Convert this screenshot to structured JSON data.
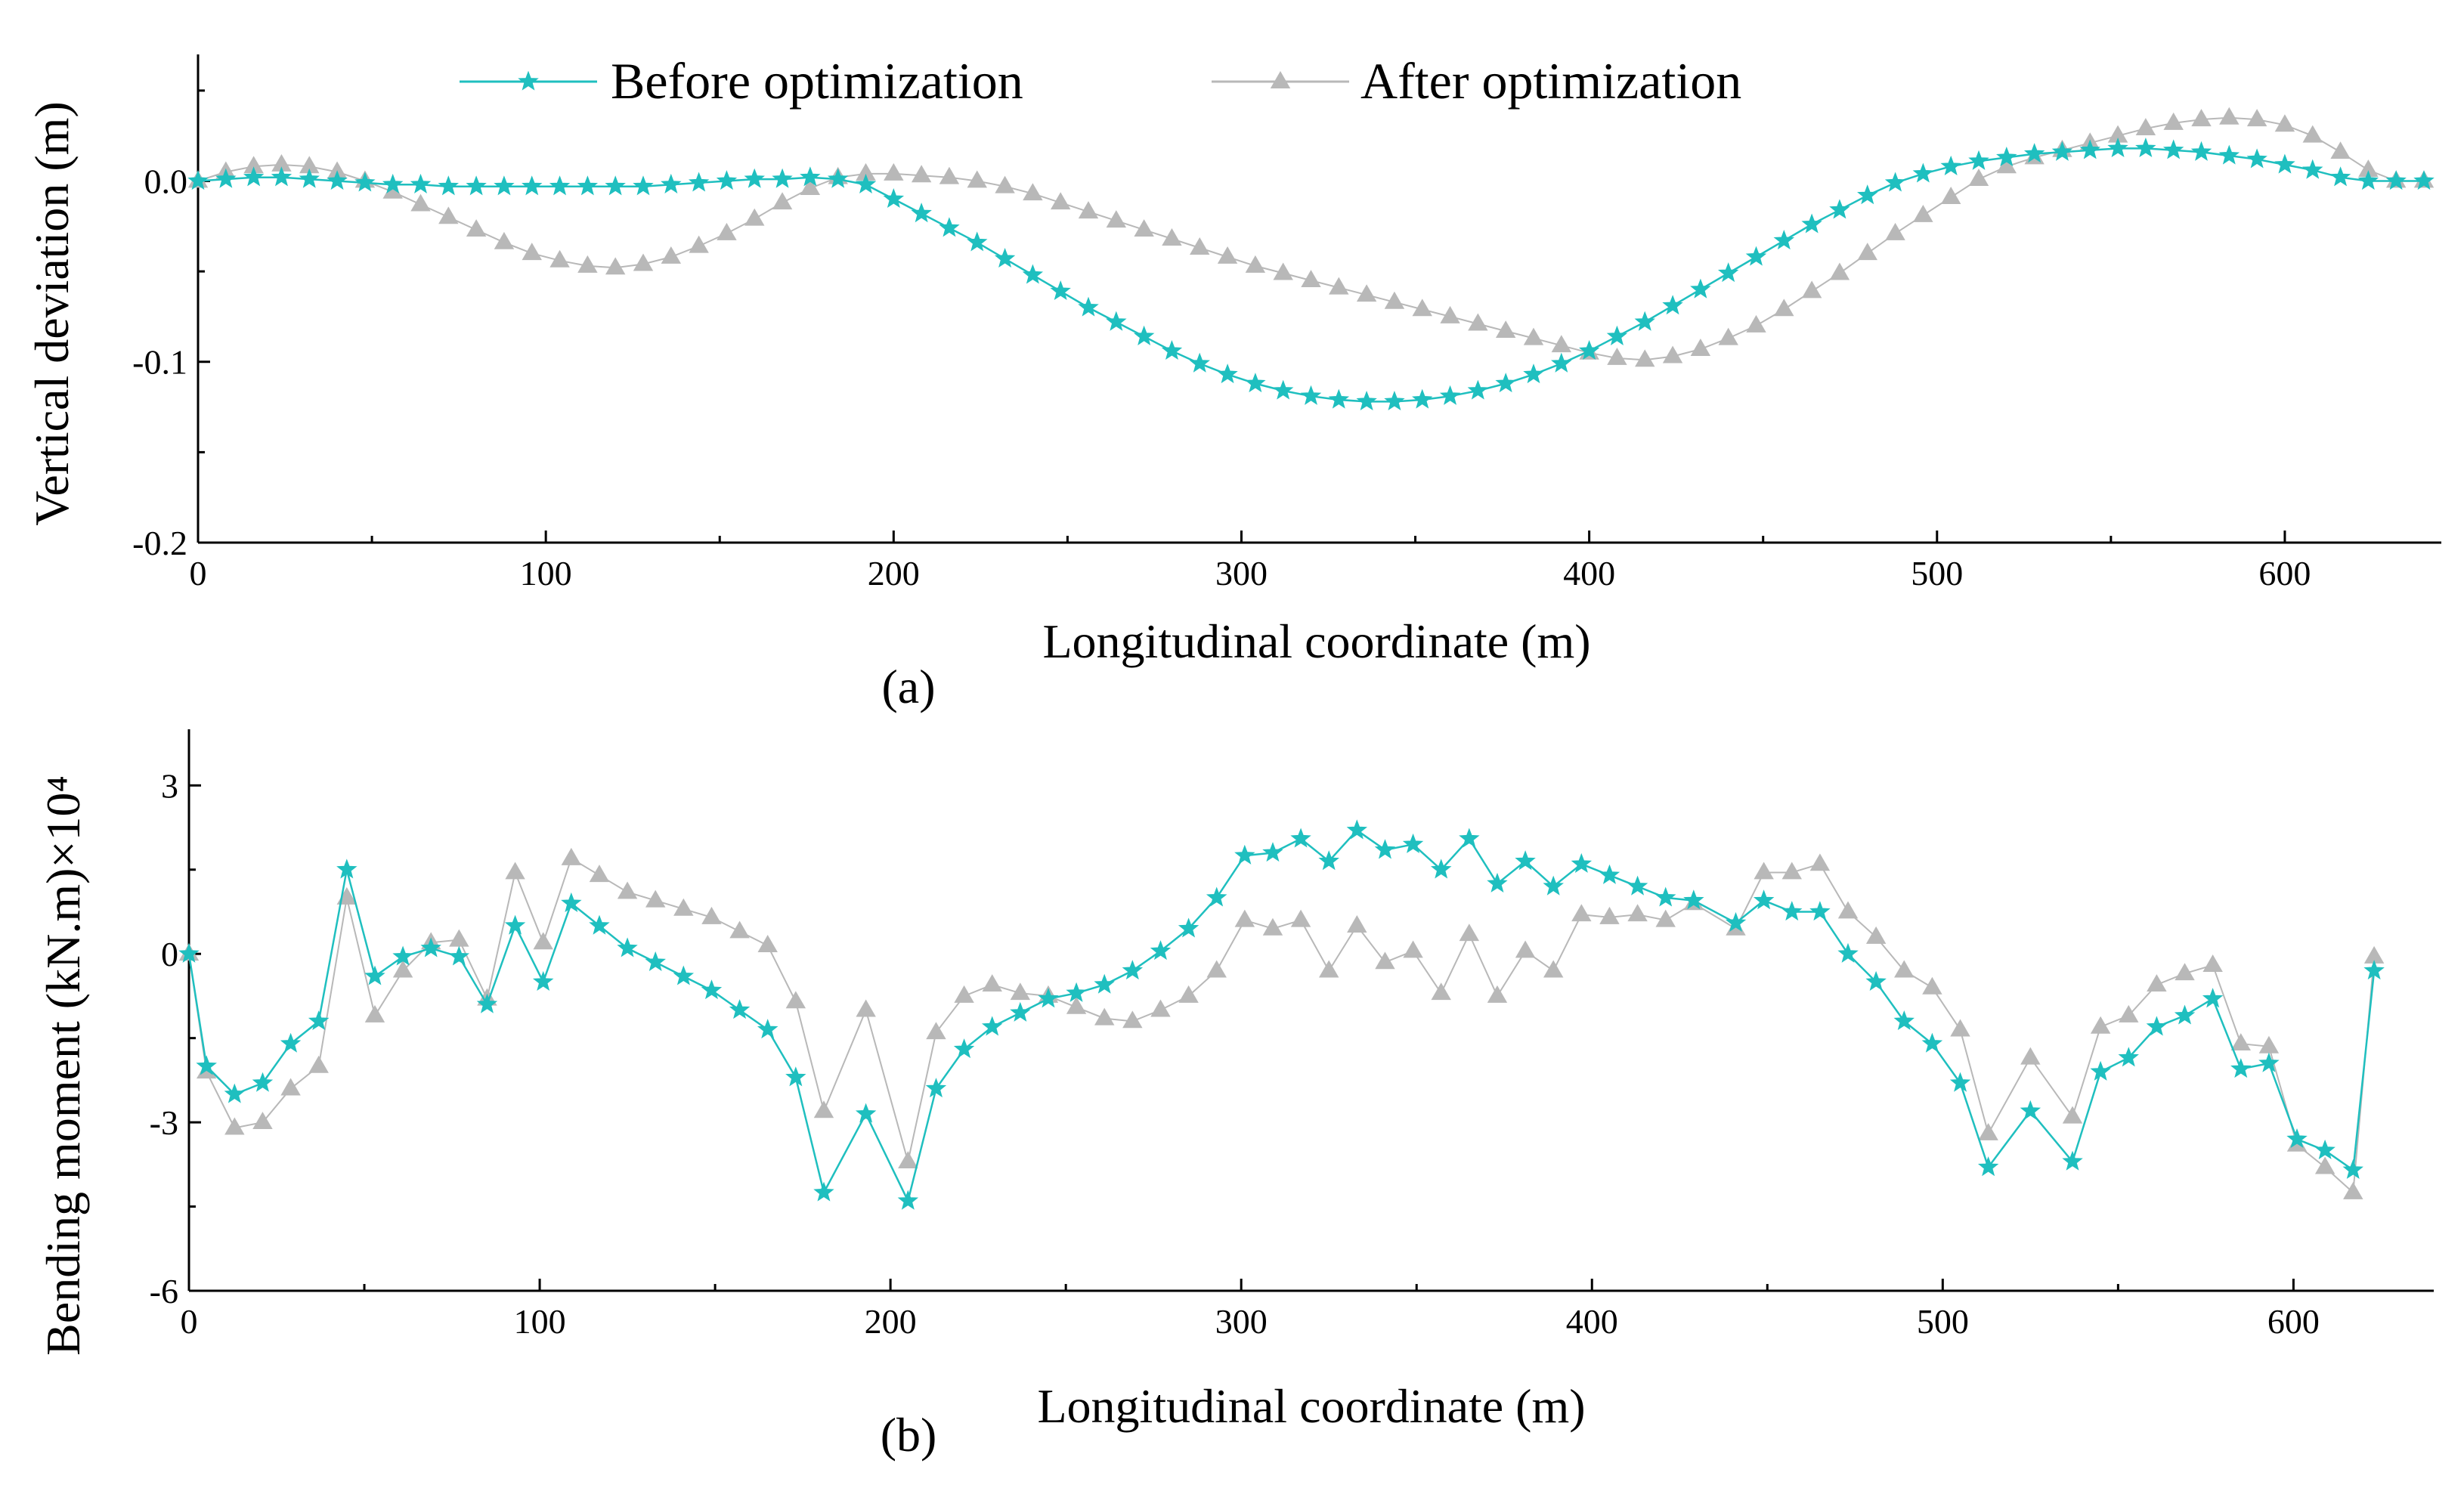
{
  "chart_data": [
    {
      "type": "line",
      "panel_label": "(a)",
      "xlabel": "Longitudinal coordinate (m)",
      "ylabel": "Vertical deviation (m)",
      "xlim": [
        0,
        645
      ],
      "ylim": [
        -0.2,
        0.07
      ],
      "xticks": [
        0,
        100,
        200,
        300,
        400,
        500,
        600
      ],
      "yticks": [
        0.0,
        -0.1,
        -0.2
      ],
      "ytick_labels": [
        "0.0",
        "-0.1",
        "-0.2"
      ],
      "legend_position": "top",
      "series": [
        {
          "name": "Before optimization",
          "color": "#1fbfbf",
          "marker": "star",
          "x": [
            0,
            8,
            16,
            24,
            32,
            40,
            48,
            56,
            64,
            72,
            80,
            88,
            96,
            104,
            112,
            120,
            128,
            136,
            144,
            152,
            160,
            168,
            176,
            184,
            192,
            200,
            208,
            216,
            224,
            232,
            240,
            248,
            256,
            264,
            272,
            280,
            288,
            296,
            304,
            312,
            320,
            328,
            336,
            344,
            352,
            360,
            368,
            376,
            384,
            392,
            400,
            408,
            416,
            424,
            432,
            440,
            448,
            456,
            464,
            472,
            480,
            488,
            496,
            504,
            512,
            520,
            528,
            536,
            544,
            552,
            560,
            568,
            576,
            584,
            592,
            600,
            608,
            616,
            624,
            632,
            640
          ],
          "values": [
            0.0,
            0.001,
            0.002,
            0.002,
            0.001,
            0.0,
            -0.001,
            -0.002,
            -0.002,
            -0.003,
            -0.003,
            -0.003,
            -0.003,
            -0.003,
            -0.003,
            -0.003,
            -0.003,
            -0.002,
            -0.001,
            0.0,
            0.001,
            0.001,
            0.002,
            0.001,
            -0.002,
            -0.01,
            -0.018,
            -0.026,
            -0.034,
            -0.043,
            -0.052,
            -0.061,
            -0.07,
            -0.078,
            -0.086,
            -0.094,
            -0.101,
            -0.107,
            -0.112,
            -0.116,
            -0.119,
            -0.121,
            -0.122,
            -0.122,
            -0.121,
            -0.119,
            -0.116,
            -0.112,
            -0.107,
            -0.101,
            -0.094,
            -0.086,
            -0.078,
            -0.069,
            -0.06,
            -0.051,
            -0.042,
            -0.033,
            -0.024,
            -0.016,
            -0.008,
            -0.001,
            0.004,
            0.008,
            0.011,
            0.013,
            0.015,
            0.016,
            0.017,
            0.018,
            0.018,
            0.017,
            0.016,
            0.014,
            0.012,
            0.009,
            0.006,
            0.002,
            0.0,
            0.0,
            0.0
          ]
        },
        {
          "name": "After optimization",
          "color": "#b8b8b8",
          "marker": "triangle",
          "x": [
            0,
            8,
            16,
            24,
            32,
            40,
            48,
            56,
            64,
            72,
            80,
            88,
            96,
            104,
            112,
            120,
            128,
            136,
            144,
            152,
            160,
            168,
            176,
            184,
            192,
            200,
            208,
            216,
            224,
            232,
            240,
            248,
            256,
            264,
            272,
            280,
            288,
            296,
            304,
            312,
            320,
            328,
            336,
            344,
            352,
            360,
            368,
            376,
            384,
            392,
            400,
            408,
            416,
            424,
            432,
            440,
            448,
            456,
            464,
            472,
            480,
            488,
            496,
            504,
            512,
            520,
            528,
            536,
            544,
            552,
            560,
            568,
            576,
            584,
            592,
            600,
            608,
            616,
            624,
            632,
            640
          ],
          "values": [
            0.0,
            0.005,
            0.008,
            0.009,
            0.008,
            0.005,
            0.0,
            -0.006,
            -0.013,
            -0.02,
            -0.027,
            -0.034,
            -0.04,
            -0.044,
            -0.047,
            -0.048,
            -0.046,
            -0.042,
            -0.036,
            -0.029,
            -0.021,
            -0.012,
            -0.004,
            0.002,
            0.004,
            0.004,
            0.003,
            0.002,
            0.0,
            -0.003,
            -0.007,
            -0.012,
            -0.017,
            -0.022,
            -0.027,
            -0.032,
            -0.037,
            -0.042,
            -0.047,
            -0.051,
            -0.055,
            -0.059,
            -0.063,
            -0.067,
            -0.071,
            -0.075,
            -0.079,
            -0.083,
            -0.087,
            -0.091,
            -0.095,
            -0.098,
            -0.099,
            -0.097,
            -0.093,
            -0.087,
            -0.08,
            -0.071,
            -0.061,
            -0.051,
            -0.04,
            -0.029,
            -0.019,
            -0.009,
            0.001,
            0.008,
            0.013,
            0.017,
            0.021,
            0.025,
            0.029,
            0.032,
            0.034,
            0.035,
            0.034,
            0.031,
            0.025,
            0.016,
            0.006,
            0.0,
            0.0
          ]
        }
      ]
    },
    {
      "type": "line",
      "panel_label": "(b)",
      "xlabel": "Longitudinal coordinate (m)",
      "ylabel": "Bending moment (kN.m)×10⁴",
      "xlim": [
        0,
        640
      ],
      "ylim": [
        -6,
        4
      ],
      "xticks": [
        0,
        100,
        200,
        300,
        400,
        500,
        600
      ],
      "yticks": [
        3,
        0,
        -3,
        -6
      ],
      "ytick_labels": [
        "3",
        "0",
        "-3",
        "-6"
      ],
      "series": [
        {
          "name": "Before optimization",
          "color": "#1fbfbf",
          "marker": "star",
          "x": [
            0,
            5,
            13,
            21,
            29,
            37,
            45,
            53,
            61,
            69,
            77,
            85,
            93,
            101,
            109,
            117,
            125,
            133,
            141,
            149,
            157,
            165,
            173,
            181,
            193,
            205,
            213,
            221,
            229,
            237,
            245,
            253,
            261,
            269,
            277,
            285,
            293,
            301,
            309,
            317,
            325,
            333,
            341,
            349,
            357,
            365,
            373,
            381,
            389,
            397,
            405,
            413,
            421,
            429,
            441,
            449,
            457,
            465,
            473,
            481,
            489,
            497,
            505,
            513,
            525,
            537,
            545,
            553,
            561,
            569,
            577,
            585,
            593,
            601,
            609,
            617,
            623
          ],
          "values": [
            0.0,
            -2.0,
            -2.5,
            -2.3,
            -1.6,
            -1.2,
            1.5,
            -0.4,
            -0.05,
            0.1,
            -0.05,
            -0.9,
            0.5,
            -0.5,
            0.9,
            0.5,
            0.1,
            -0.15,
            -0.4,
            -0.65,
            -1.0,
            -1.35,
            -2.2,
            -4.25,
            -2.85,
            -4.4,
            -2.4,
            -1.7,
            -1.3,
            -1.05,
            -0.8,
            -0.7,
            -0.55,
            -0.3,
            0.05,
            0.45,
            1.0,
            1.75,
            1.8,
            2.05,
            1.65,
            2.2,
            1.85,
            1.95,
            1.5,
            2.05,
            1.25,
            1.65,
            1.2,
            1.6,
            1.4,
            1.2,
            1.0,
            0.95,
            0.55,
            0.95,
            0.75,
            0.75,
            0.0,
            -0.5,
            -1.2,
            -1.6,
            -2.3,
            -3.8,
            -2.8,
            -3.7,
            -2.1,
            -1.85,
            -1.3,
            -1.1,
            -0.8,
            -2.05,
            -1.95,
            -3.3,
            -3.5,
            -3.85,
            -0.3
          ]
        },
        {
          "name": "After optimization",
          "color": "#b8b8b8",
          "marker": "triangle",
          "x": [
            0,
            5,
            13,
            21,
            29,
            37,
            45,
            53,
            61,
            69,
            77,
            85,
            93,
            101,
            109,
            117,
            125,
            133,
            141,
            149,
            157,
            165,
            173,
            181,
            193,
            205,
            213,
            221,
            229,
            237,
            245,
            253,
            261,
            269,
            277,
            285,
            293,
            301,
            309,
            317,
            325,
            333,
            341,
            349,
            357,
            365,
            373,
            381,
            389,
            397,
            405,
            413,
            421,
            429,
            441,
            449,
            457,
            465,
            473,
            481,
            489,
            497,
            505,
            513,
            525,
            537,
            545,
            553,
            561,
            569,
            577,
            585,
            593,
            601,
            609,
            617,
            623
          ],
          "values": [
            0.0,
            -2.1,
            -3.1,
            -3.0,
            -2.4,
            -2.0,
            1.0,
            -1.1,
            -0.3,
            0.2,
            0.25,
            -0.8,
            1.45,
            0.2,
            1.7,
            1.4,
            1.1,
            0.95,
            0.8,
            0.65,
            0.4,
            0.15,
            -0.85,
            -2.8,
            -1.0,
            -3.7,
            -1.4,
            -0.75,
            -0.55,
            -0.7,
            -0.75,
            -0.95,
            -1.15,
            -1.2,
            -1.0,
            -0.75,
            -0.3,
            0.6,
            0.45,
            0.6,
            -0.3,
            0.5,
            -0.15,
            0.05,
            -0.7,
            0.35,
            -0.75,
            0.05,
            -0.3,
            0.7,
            0.65,
            0.7,
            0.6,
            0.9,
            0.45,
            1.45,
            1.45,
            1.6,
            0.75,
            0.3,
            -0.3,
            -0.6,
            -1.35,
            -3.2,
            -1.85,
            -2.9,
            -1.3,
            -1.1,
            -0.55,
            -0.35,
            -0.2,
            -1.6,
            -1.65,
            -3.4,
            -3.8,
            -4.25,
            -0.05
          ]
        }
      ]
    }
  ]
}
